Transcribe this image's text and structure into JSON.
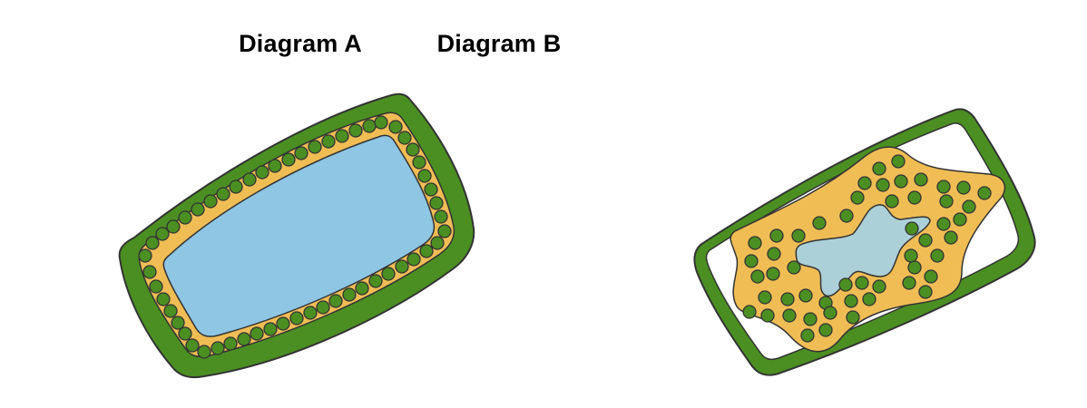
{
  "diagram_a": {
    "title": "Diagram A",
    "colors": {
      "cell_wall": "#4b8f22",
      "cytoplasm": "#f0bd55",
      "vacuole": "#8ec6e3",
      "chloroplast": "#4b8f22",
      "outline": "#333333"
    }
  },
  "diagram_b": {
    "title": "Diagram B",
    "colors": {
      "cell_wall": "#4b8f22",
      "gap": "#ffffff",
      "cytoplasm": "#f0bd55",
      "vacuole": "#acd0d8",
      "chloroplast": "#4b8f22",
      "outline": "#333333"
    }
  }
}
